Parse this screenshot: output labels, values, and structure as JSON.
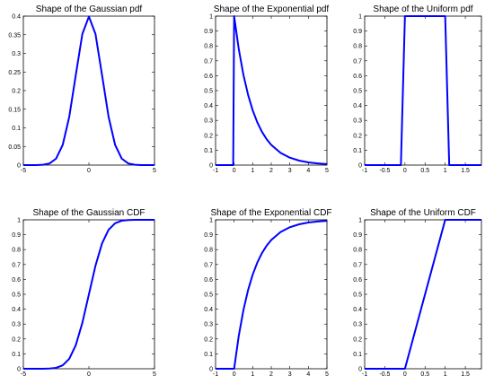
{
  "chart_data": [
    {
      "type": "line",
      "title": "Shape of the Gaussian pdf",
      "xlabel": "",
      "ylabel": "",
      "xlim": [
        -5,
        5
      ],
      "ylim": [
        0,
        0.4
      ],
      "xticks": [
        "-5",
        "0",
        "5"
      ],
      "yticks": [
        "0",
        "0.05",
        "0.1",
        "0.15",
        "0.2",
        "0.25",
        "0.3",
        "0.35",
        "0.4"
      ],
      "grid": false,
      "series": [
        {
          "x": [
            -5,
            -4.5,
            -4,
            -3.5,
            -3,
            -2.5,
            -2,
            -1.5,
            -1,
            -0.5,
            0,
            0.5,
            1,
            1.5,
            2,
            2.5,
            3,
            3.5,
            4,
            4.5,
            5
          ],
          "y": [
            0.0,
            0.0,
            0.0001,
            0.0009,
            0.0044,
            0.0175,
            0.054,
            0.1295,
            0.242,
            0.3521,
            0.3989,
            0.3521,
            0.242,
            0.1295,
            0.054,
            0.0175,
            0.0044,
            0.0009,
            0.0001,
            0.0,
            0.0
          ]
        }
      ]
    },
    {
      "type": "line",
      "title": "Shape of the Exponential pdf",
      "xlabel": "",
      "ylabel": "",
      "xlim": [
        -1,
        5
      ],
      "ylim": [
        0,
        1
      ],
      "xticks": [
        "-1",
        "0",
        "1",
        "2",
        "3",
        "4",
        "5"
      ],
      "yticks": [
        "0",
        "0.1",
        "0.2",
        "0.3",
        "0.4",
        "0.5",
        "0.6",
        "0.7",
        "0.8",
        "0.9",
        "1"
      ],
      "grid": false,
      "series": [
        {
          "x": [
            -1,
            -0.05,
            0,
            0.25,
            0.5,
            0.75,
            1,
            1.25,
            1.5,
            1.75,
            2,
            2.5,
            3,
            3.5,
            4,
            4.5,
            5
          ],
          "y": [
            0,
            0,
            1.0,
            0.7788,
            0.6065,
            0.4724,
            0.3679,
            0.2865,
            0.2231,
            0.1738,
            0.1353,
            0.0821,
            0.0498,
            0.0302,
            0.0183,
            0.0111,
            0.0067
          ]
        }
      ]
    },
    {
      "type": "line",
      "title": "Shape of the Uniform pdf",
      "xlabel": "",
      "ylabel": "",
      "xlim": [
        -1,
        1.9
      ],
      "ylim": [
        0,
        1
      ],
      "xticks": [
        "-1",
        "-0.5",
        "0",
        "0.5",
        "1",
        "1.5"
      ],
      "yticks": [
        "0",
        "0.1",
        "0.2",
        "0.3",
        "0.4",
        "0.5",
        "0.6",
        "0.7",
        "0.8",
        "0.9",
        "1"
      ],
      "grid": false,
      "series": [
        {
          "x": [
            -1,
            -0.1,
            0,
            1,
            1.1,
            1.9
          ],
          "y": [
            0,
            0,
            1,
            1,
            0,
            0
          ]
        }
      ]
    },
    {
      "type": "line",
      "title": "Shape of the Gaussian CDF",
      "xlabel": "",
      "ylabel": "",
      "xlim": [
        -5,
        5
      ],
      "ylim": [
        0,
        1
      ],
      "xticks": [
        "-5",
        "0",
        "5"
      ],
      "yticks": [
        "0",
        "0.1",
        "0.2",
        "0.3",
        "0.4",
        "0.5",
        "0.6",
        "0.7",
        "0.8",
        "0.9",
        "1"
      ],
      "grid": false,
      "series": [
        {
          "x": [
            -5,
            -4.5,
            -4,
            -3.5,
            -3,
            -2.5,
            -2,
            -1.5,
            -1,
            -0.5,
            0,
            0.5,
            1,
            1.5,
            2,
            2.5,
            3,
            3.5,
            4,
            4.5,
            5
          ],
          "y": [
            0.0,
            0.0,
            0.0,
            0.0002,
            0.0013,
            0.0062,
            0.0228,
            0.0668,
            0.1587,
            0.3085,
            0.5,
            0.6915,
            0.8413,
            0.9332,
            0.9772,
            0.9938,
            0.9987,
            0.9998,
            1.0,
            1.0,
            1.0
          ]
        }
      ]
    },
    {
      "type": "line",
      "title": "Shape of the Exponential CDF",
      "xlabel": "",
      "ylabel": "",
      "xlim": [
        -1,
        5
      ],
      "ylim": [
        0,
        1
      ],
      "xticks": [
        "-1",
        "0",
        "1",
        "2",
        "3",
        "4",
        "5"
      ],
      "yticks": [
        "0",
        "0.1",
        "0.2",
        "0.3",
        "0.4",
        "0.5",
        "0.6",
        "0.7",
        "0.8",
        "0.9",
        "1"
      ],
      "grid": false,
      "series": [
        {
          "x": [
            -1,
            0,
            0.25,
            0.5,
            0.75,
            1,
            1.25,
            1.5,
            1.75,
            2,
            2.5,
            3,
            3.5,
            4,
            4.5,
            5
          ],
          "y": [
            0,
            0,
            0.2212,
            0.3935,
            0.5276,
            0.6321,
            0.7135,
            0.7769,
            0.8262,
            0.8647,
            0.9179,
            0.9502,
            0.9698,
            0.9817,
            0.9889,
            0.9933
          ]
        }
      ]
    },
    {
      "type": "line",
      "title": "Shape of the Uniform CDF",
      "xlabel": "",
      "ylabel": "",
      "xlim": [
        -1,
        1.9
      ],
      "ylim": [
        0,
        1
      ],
      "xticks": [
        "-1",
        "-0.5",
        "0",
        "0.5",
        "1",
        "1.5"
      ],
      "yticks": [
        "0",
        "0.1",
        "0.2",
        "0.3",
        "0.4",
        "0.5",
        "0.6",
        "0.7",
        "0.8",
        "0.9",
        "1"
      ],
      "grid": false,
      "series": [
        {
          "x": [
            -1,
            0,
            1,
            1.9
          ],
          "y": [
            0,
            0,
            1,
            1
          ]
        }
      ]
    }
  ],
  "style": {
    "line_color": "#0000ff",
    "axis_color": "#000000",
    "background": "#ffffff"
  }
}
